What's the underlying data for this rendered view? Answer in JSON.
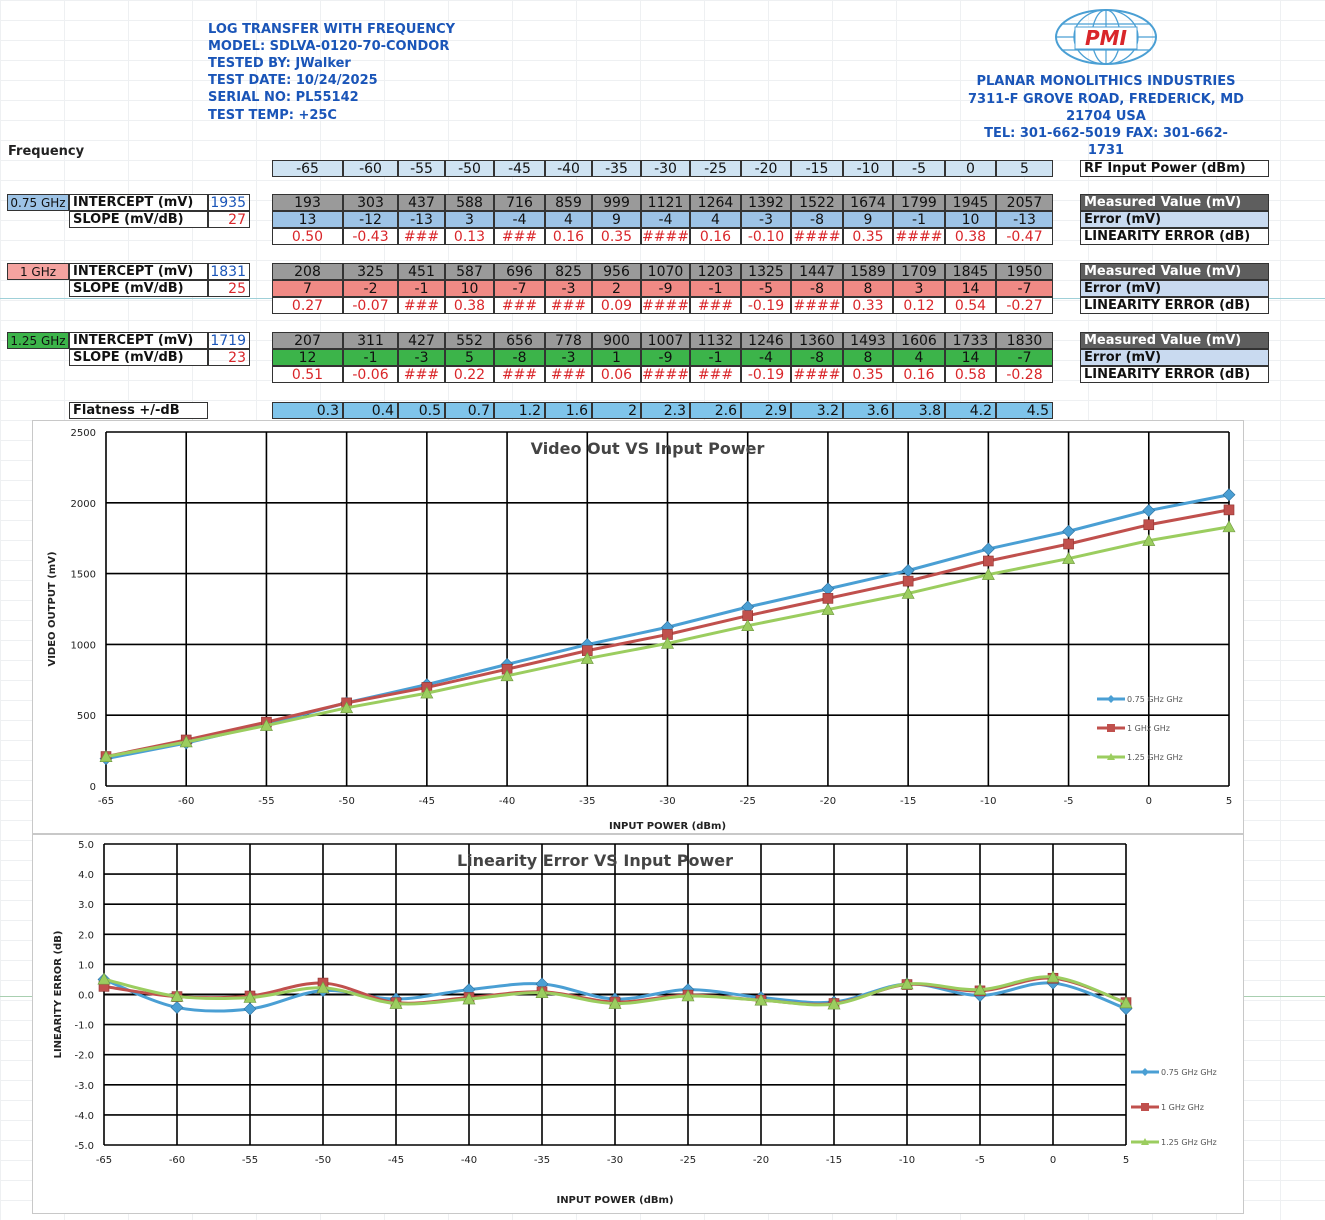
{
  "header": {
    "lines": [
      "LOG TRANSFER WITH FREQUENCY",
      "MODEL: SDLVA-0120-70-CONDOR",
      "TESTED BY: JWalker",
      "TEST DATE: 10/24/2025",
      "SERIAL NO: PL55142",
      "TEST TEMP: +25C"
    ]
  },
  "company": {
    "logo_text": "PMI",
    "lines": [
      "PLANAR MONOLITHICS INDUSTRIES",
      "7311-F GROVE ROAD, FREDERICK, MD",
      "21704 USA",
      "TEL: 301-662-5019  FAX: 301-662-",
      "1731"
    ]
  },
  "table": {
    "frequency_label": "Frequency",
    "power_header": [
      "-65",
      "-60",
      "-55",
      "-50",
      "-45",
      "-40",
      "-35",
      "-30",
      "-25",
      "-20",
      "-15",
      "-10",
      "-5",
      "0",
      "5"
    ],
    "rf_input_label": "RF Input Power (dBm)",
    "row_labels": {
      "measured": "Measured Value (mV)",
      "error": "Error (mV)",
      "linearity": "LINEARITY ERROR (dB)"
    },
    "intercept_label": "INTERCEPT (mV)",
    "slope_label": "SLOPE (mV/dB)",
    "groups": [
      {
        "freq": "0.75 GHz",
        "intercept": "1935",
        "slope": "27",
        "measured": [
          "193",
          "303",
          "437",
          "588",
          "716",
          "859",
          "999",
          "1121",
          "1264",
          "1392",
          "1522",
          "1674",
          "1799",
          "1945",
          "2057"
        ],
        "error": [
          "13",
          "-12",
          "-13",
          "3",
          "-4",
          "4",
          "9",
          "-4",
          "4",
          "-3",
          "-8",
          "9",
          "-1",
          "10",
          "-13"
        ],
        "linearity": [
          "0.50",
          "-0.43",
          "###",
          "0.13",
          "###",
          "0.16",
          "0.35",
          "####",
          "0.16",
          "-0.10",
          "####",
          "0.35",
          "####",
          "0.38",
          "-0.47"
        ],
        "colors": {
          "freq_bg": "#9dc3e6",
          "error_bg": "#9dc3e6",
          "num": "#1a55b8"
        }
      },
      {
        "freq": "1 GHz",
        "intercept": "1831",
        "slope": "25",
        "measured": [
          "208",
          "325",
          "451",
          "587",
          "696",
          "825",
          "956",
          "1070",
          "1203",
          "1325",
          "1447",
          "1589",
          "1709",
          "1845",
          "1950"
        ],
        "error": [
          "7",
          "-2",
          "-1",
          "10",
          "-7",
          "-3",
          "2",
          "-9",
          "-1",
          "-5",
          "-8",
          "8",
          "3",
          "14",
          "-7"
        ],
        "linearity": [
          "0.27",
          "-0.07",
          "###",
          "0.38",
          "###",
          "###",
          "0.09",
          "####",
          "###",
          "-0.19",
          "####",
          "0.33",
          "0.12",
          "0.54",
          "-0.27"
        ],
        "colors": {
          "freq_bg": "#f4a3a0",
          "error_bg": "#f08a85",
          "num": "#1a55b8"
        }
      },
      {
        "freq": "1.25 GHz",
        "intercept": "1719",
        "slope": "23",
        "measured": [
          "207",
          "311",
          "427",
          "552",
          "656",
          "778",
          "900",
          "1007",
          "1132",
          "1246",
          "1360",
          "1493",
          "1606",
          "1733",
          "1830"
        ],
        "error": [
          "12",
          "-1",
          "-3",
          "5",
          "-8",
          "-3",
          "1",
          "-9",
          "-1",
          "-4",
          "-8",
          "8",
          "4",
          "14",
          "-7"
        ],
        "linearity": [
          "0.51",
          "-0.06",
          "###",
          "0.22",
          "###",
          "###",
          "0.06",
          "####",
          "###",
          "-0.19",
          "####",
          "0.35",
          "0.16",
          "0.58",
          "-0.28"
        ],
        "colors": {
          "freq_bg": "#3cb44a",
          "error_bg": "#3cb44a",
          "num": "#1a55b8"
        }
      }
    ],
    "flatness_label": "Flatness +/-dB",
    "flatness": [
      "0.3",
      "0.4",
      "0.5",
      "0.7",
      "1.2",
      "1.6",
      "2",
      "2.3",
      "2.6",
      "2.9",
      "3.2",
      "3.6",
      "3.8",
      "4.2",
      "4.5"
    ]
  },
  "colors": {
    "series_075": "#4a9fd4",
    "series_1": "#c0504d",
    "series_125": "#9bcd5f",
    "measured_bg": "#9a9a9a",
    "header_bg": "#cfe3f2",
    "flatness_bg": "#7fc4ea",
    "label_bg": "#5e5e5e",
    "error_label_bg": "#c9daf0",
    "red_text": "#d9262a"
  },
  "chart_data": [
    {
      "type": "line",
      "title": "Video Out VS Input Power",
      "xlabel": "INPUT POWER (dBm)",
      "ylabel": "VIDEO OUTPUT (mV)",
      "x": [
        -65,
        -60,
        -55,
        -50,
        -45,
        -40,
        -35,
        -30,
        -25,
        -20,
        -15,
        -10,
        -5,
        0,
        5
      ],
      "xlim": [
        -65,
        5
      ],
      "ylim": [
        0,
        2500
      ],
      "yticks": [
        0,
        500,
        1000,
        1500,
        2000,
        2500
      ],
      "grid": true,
      "legend": "right",
      "series": [
        {
          "name": "0.75 GHz GHz",
          "marker": "diamond",
          "values": [
            193,
            303,
            437,
            588,
            716,
            859,
            999,
            1121,
            1264,
            1392,
            1522,
            1674,
            1799,
            1945,
            2057
          ]
        },
        {
          "name": "1 GHz GHz",
          "marker": "square",
          "values": [
            208,
            325,
            451,
            587,
            696,
            825,
            956,
            1070,
            1203,
            1325,
            1447,
            1589,
            1709,
            1845,
            1950
          ]
        },
        {
          "name": "1.25 GHz GHz",
          "marker": "triangle",
          "values": [
            207,
            311,
            427,
            552,
            656,
            778,
            900,
            1007,
            1132,
            1246,
            1360,
            1493,
            1606,
            1733,
            1830
          ]
        }
      ]
    },
    {
      "type": "line",
      "title": "Linearity Error VS Input Power",
      "xlabel": "INPUT POWER (dBm)",
      "ylabel": "LINEARITY ERROR (dB)",
      "x": [
        -65,
        -60,
        -55,
        -50,
        -45,
        -40,
        -35,
        -30,
        -25,
        -20,
        -15,
        -10,
        -5,
        0,
        5
      ],
      "xlim": [
        -65,
        5
      ],
      "ylim": [
        -5,
        5
      ],
      "yticks": [
        -5,
        -4,
        -3,
        -2,
        -1,
        0,
        1,
        2,
        3,
        4,
        5
      ],
      "ytick_labels": [
        "-5.0",
        "-4.0",
        "-3.0",
        "-2.0",
        "-1.0",
        "0.0",
        "1.0",
        "2.0",
        "3.0",
        "4.0",
        "5.0"
      ],
      "grid": true,
      "legend": "right",
      "series": [
        {
          "name": "0.75 GHz GHz",
          "marker": "diamond",
          "values": [
            0.5,
            -0.43,
            -0.48,
            0.13,
            -0.15,
            0.16,
            0.35,
            -0.15,
            0.16,
            -0.1,
            -0.25,
            0.35,
            -0.03,
            0.38,
            -0.47
          ]
        },
        {
          "name": "1 GHz GHz",
          "marker": "square",
          "values": [
            0.27,
            -0.07,
            -0.05,
            0.38,
            -0.27,
            -0.1,
            0.09,
            -0.25,
            -0.02,
            -0.19,
            -0.3,
            0.33,
            0.12,
            0.54,
            -0.27
          ]
        },
        {
          "name": "1.25 GHz GHz",
          "marker": "triangle",
          "values": [
            0.51,
            -0.06,
            -0.1,
            0.22,
            -0.3,
            -0.15,
            0.06,
            -0.3,
            -0.05,
            -0.19,
            -0.32,
            0.35,
            0.16,
            0.58,
            -0.28
          ]
        }
      ]
    }
  ]
}
